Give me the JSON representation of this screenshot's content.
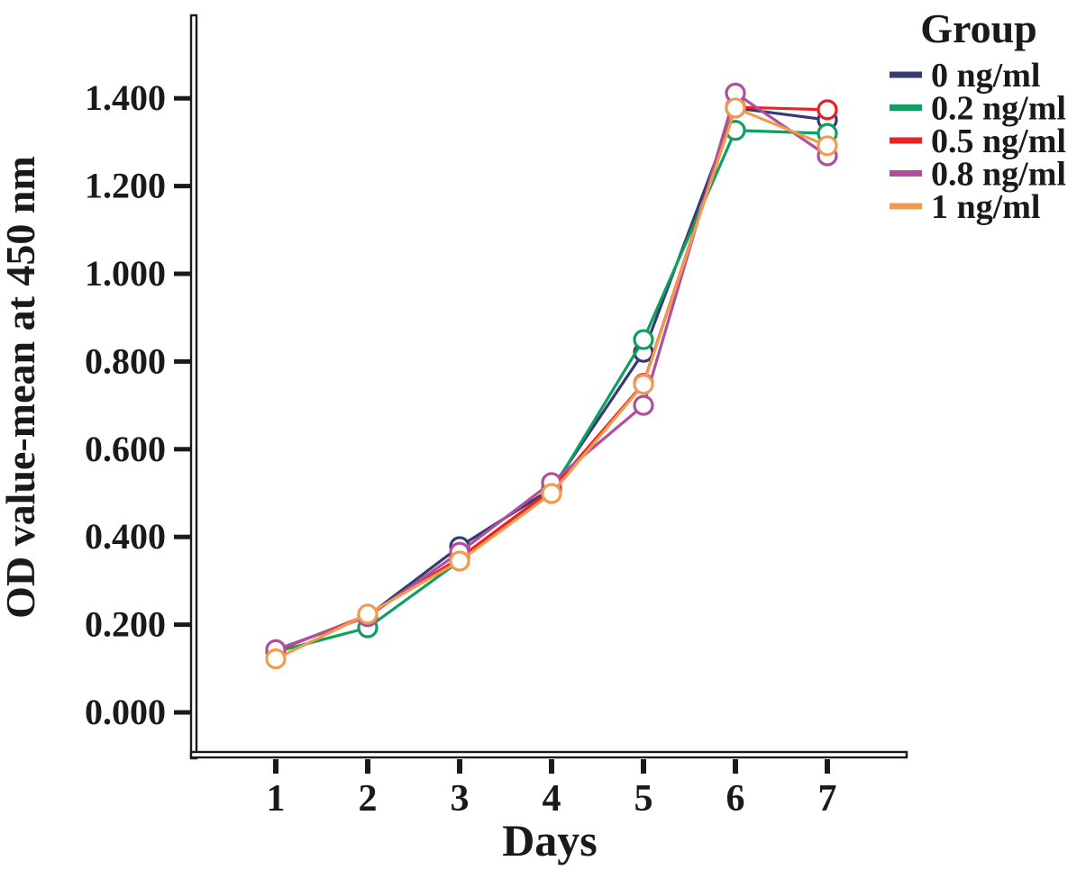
{
  "figure": {
    "background": "#ffffff",
    "text_color": "#1a1a1a",
    "axis_color": "#1a1a1a"
  },
  "chart_data": {
    "type": "line",
    "title": "",
    "xlabel": "Days",
    "ylabel": "OD value-mean at 450 nm",
    "x": [
      1,
      2,
      3,
      4,
      5,
      6,
      7
    ],
    "xtick_labels": [
      "1",
      "2",
      "3",
      "4",
      "5",
      "6",
      "7"
    ],
    "ytick_labels": [
      "0.000",
      "0.200",
      "0.400",
      "0.600",
      "0.800",
      "1.000",
      "1.200",
      "1.400"
    ],
    "ylim": [
      0,
      1.59
    ],
    "xlim": [
      0,
      7.9
    ],
    "grid": "off",
    "marker": {
      "shape": "circle",
      "fill": "#ffffff"
    },
    "legend": {
      "title": "Group",
      "position": "top-right"
    },
    "series": [
      {
        "name": "0 ng/ml",
        "color": "#373B74",
        "values": [
          0.142,
          0.22,
          0.378,
          0.51,
          0.821,
          1.378,
          1.351
        ]
      },
      {
        "name": "0.2 ng/ml",
        "color": "#0F9F5F",
        "values": [
          0.138,
          0.193,
          0.345,
          0.505,
          0.85,
          1.327,
          1.32
        ]
      },
      {
        "name": "0.5 ng/ml",
        "color": "#EA2127",
        "values": [
          0.14,
          0.222,
          0.352,
          0.508,
          0.75,
          1.38,
          1.374
        ]
      },
      {
        "name": "0.8 ng/ml",
        "color": "#B04F9B",
        "values": [
          0.143,
          0.218,
          0.365,
          0.524,
          0.7,
          1.412,
          1.269
        ]
      },
      {
        "name": "1 ng/ml",
        "color": "#F19B4F",
        "values": [
          0.122,
          0.224,
          0.345,
          0.499,
          0.748,
          1.378,
          1.292
        ]
      }
    ]
  }
}
